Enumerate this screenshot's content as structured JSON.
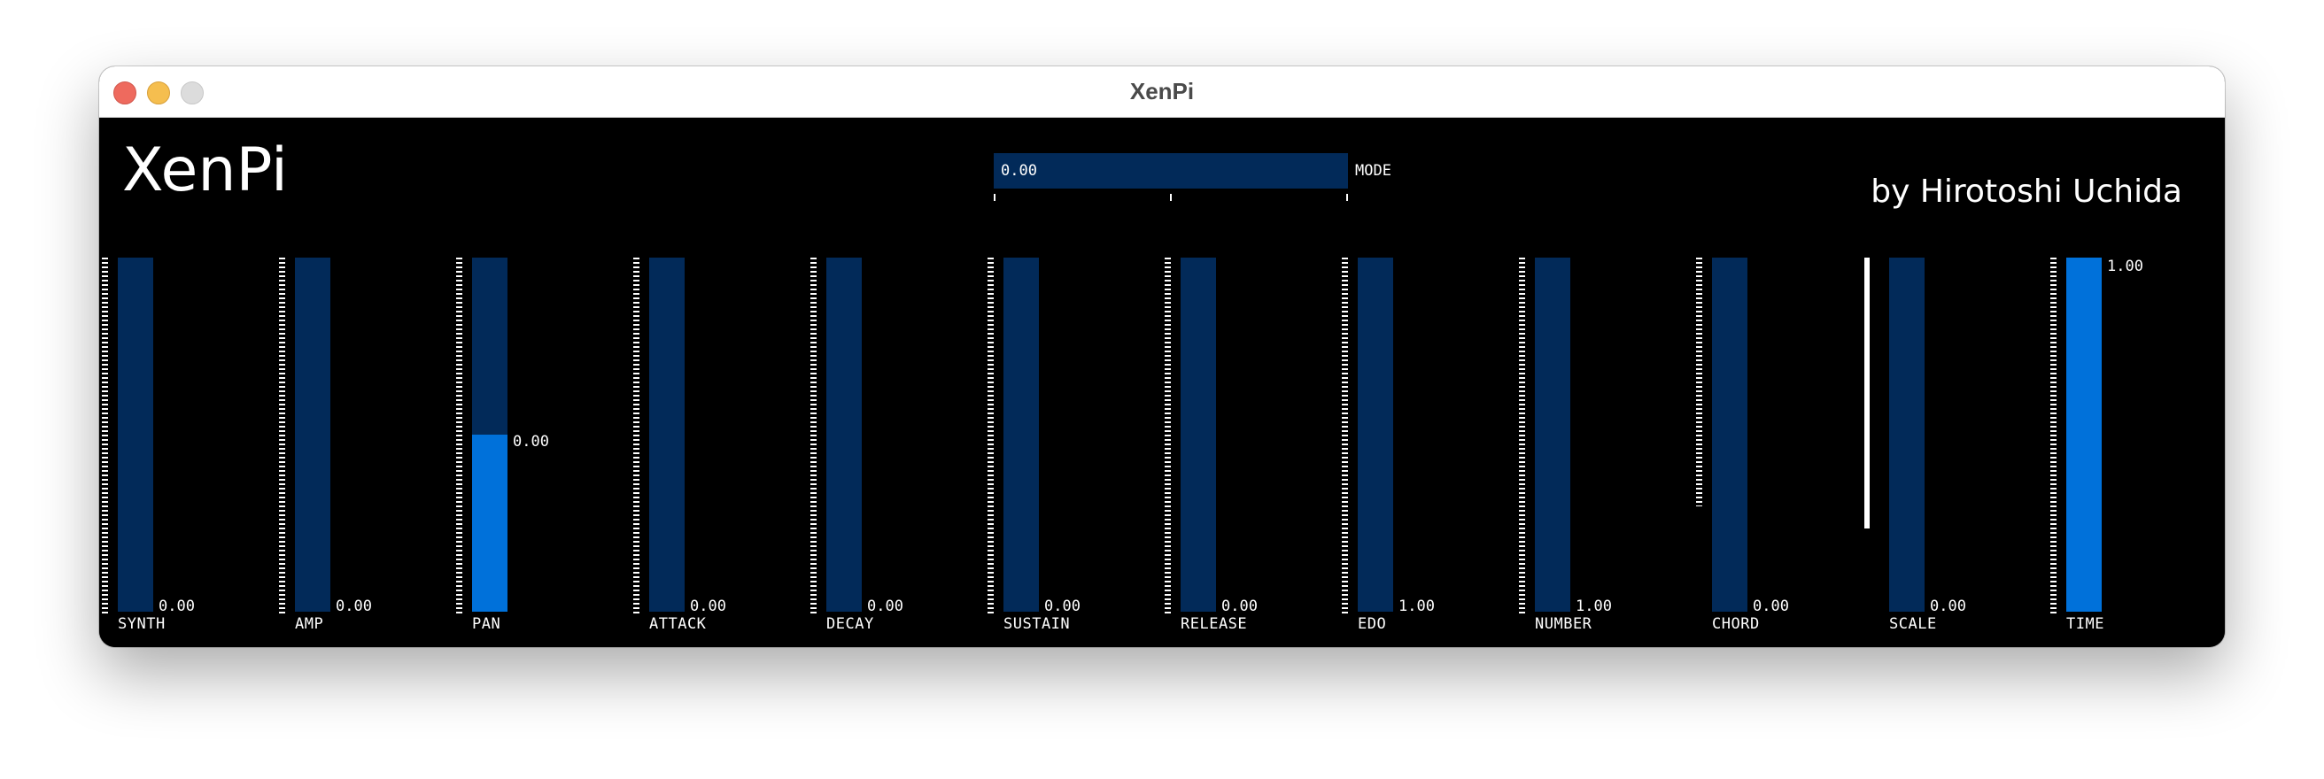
{
  "window": {
    "title": "XenPi"
  },
  "app": {
    "title": "XenPi",
    "author": "by Hirotoshi Uchida"
  },
  "mode": {
    "label": "MODE",
    "value": "0.00",
    "fraction": 0.0,
    "tick_count": 3
  },
  "sliders": [
    {
      "label": "SYNTH",
      "value": "0.00",
      "fraction": 0.0,
      "value_pos": "bottom",
      "scale": "ticks",
      "scale_fraction": 1.0
    },
    {
      "label": "AMP",
      "value": "0.00",
      "fraction": 0.0,
      "value_pos": "bottom",
      "scale": "ticks",
      "scale_fraction": 1.0
    },
    {
      "label": "PAN",
      "value": "0.00",
      "fraction": 0.5,
      "value_pos": "fill",
      "scale": "ticks",
      "scale_fraction": 1.0
    },
    {
      "label": "ATTACK",
      "value": "0.00",
      "fraction": 0.0,
      "value_pos": "bottom",
      "scale": "ticks",
      "scale_fraction": 1.0
    },
    {
      "label": "DECAY",
      "value": "0.00",
      "fraction": 0.0,
      "value_pos": "bottom",
      "scale": "ticks",
      "scale_fraction": 1.0
    },
    {
      "label": "SUSTAIN",
      "value": "0.00",
      "fraction": 0.0,
      "value_pos": "bottom",
      "scale": "ticks",
      "scale_fraction": 1.0
    },
    {
      "label": "RELEASE",
      "value": "0.00",
      "fraction": 0.0,
      "value_pos": "bottom",
      "scale": "ticks",
      "scale_fraction": 1.0
    },
    {
      "label": "EDO",
      "value": "1.00",
      "fraction": 0.0,
      "value_pos": "bottom",
      "scale": "ticks",
      "scale_fraction": 1.0
    },
    {
      "label": "NUMBER",
      "value": "1.00",
      "fraction": 0.0,
      "value_pos": "bottom",
      "scale": "ticks",
      "scale_fraction": 1.0
    },
    {
      "label": "CHORD",
      "value": "0.00",
      "fraction": 0.0,
      "value_pos": "bottom",
      "scale": "ticks",
      "scale_fraction": 0.7
    },
    {
      "label": "SCALE",
      "value": "0.00",
      "fraction": 0.0,
      "value_pos": "bottom",
      "scale": "solid",
      "scale_fraction": 0.76
    },
    {
      "label": "TIME",
      "value": "1.00",
      "fraction": 1.0,
      "value_pos": "fill",
      "scale": "ticks",
      "scale_fraction": 1.0
    }
  ],
  "colors": {
    "background": "#000000",
    "track": "#022a59",
    "fill": "#0071da",
    "text": "#ffffff"
  }
}
